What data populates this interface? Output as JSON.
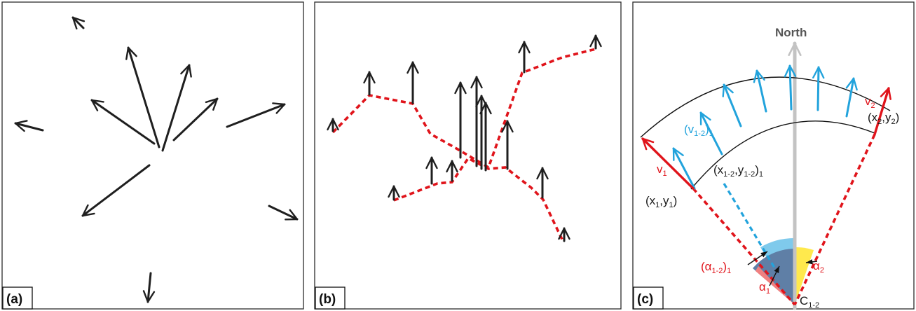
{
  "panels": [
    {
      "label": "(a)"
    },
    {
      "label": "(b)"
    },
    {
      "label": "(c)"
    }
  ],
  "panel_c": {
    "north_label": "North",
    "v1": {
      "base": "v",
      "sub": "1"
    },
    "v2": {
      "base": "v",
      "sub": "2"
    },
    "v12": {
      "open": "(v",
      "sub1": "1-2",
      "close": ")",
      "sub2": "1"
    },
    "pt1": {
      "a": "(x",
      "s1": "1",
      "b": ",y",
      "s2": "1",
      "c": ")"
    },
    "pt2": {
      "a": "(x",
      "s1": "2",
      "b": ",y",
      "s2": "2",
      "c": ")"
    },
    "pt12": {
      "a": "(x",
      "s1": "1-2",
      "b": ",y",
      "s2": "1-2",
      "c": ")",
      "s3": "1"
    },
    "alpha12": {
      "open": "(α",
      "sub1": "1-2",
      "close": ")",
      "sub2": "1"
    },
    "alpha1": {
      "base": "α",
      "sub": "1"
    },
    "alpha2": {
      "base": "α",
      "sub": "2"
    },
    "center": {
      "base": "C",
      "sub": "1-2"
    }
  },
  "colors": {
    "frame": "#2b2b2b",
    "arrow_black": "#1f1f1f",
    "red": "#e0141b",
    "blue": "#22a3dc",
    "light_blue_fill": "#7fcaec",
    "dark_blue_fill": "#5f7fa6",
    "yellow_fill": "#ffe94d",
    "pink_fill": "#f08080",
    "north_gray": "#c3c3c3"
  }
}
